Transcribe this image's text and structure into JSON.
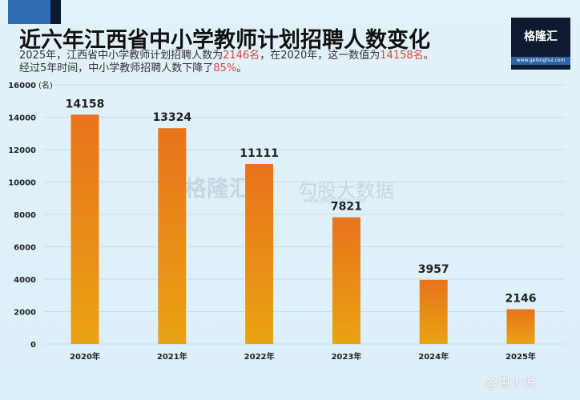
{
  "header": {
    "title": "近六年江西省中小学教师计划招聘人数变化",
    "subtitle_parts": [
      "2025年，江西省中小学教师计划招聘人数为",
      "2146名",
      "，在2020年，这一数值为",
      "14158名",
      "。"
    ],
    "subtitle2_parts": [
      "经过5年时间，中小学教师招聘人数下降了",
      "85%",
      "。"
    ]
  },
  "logo": {
    "text": "格隆汇",
    "url": "www.gelonghui.com"
  },
  "watermark": {
    "brand": "格隆汇",
    "name": "勾股大数据",
    "url": "www.gogudata.com"
  },
  "credit": "@周少说",
  "colors": {
    "bar_top": "#e8731c",
    "bar_bottom": "#e9a313",
    "highlight": "#d9473f"
  },
  "chart_data": {
    "type": "bar",
    "title": "近六年江西省中小学教师计划招聘人数变化",
    "categories": [
      "2020年",
      "2021年",
      "2022年",
      "2023年",
      "2024年",
      "2025年"
    ],
    "values": [
      14158,
      13324,
      11111,
      7821,
      3957,
      2146
    ],
    "yunit": "(名)",
    "ylim": [
      0,
      16000
    ],
    "yticks": [
      0,
      2000,
      4000,
      6000,
      8000,
      10000,
      12000,
      14000,
      16000
    ],
    "grid": true
  }
}
